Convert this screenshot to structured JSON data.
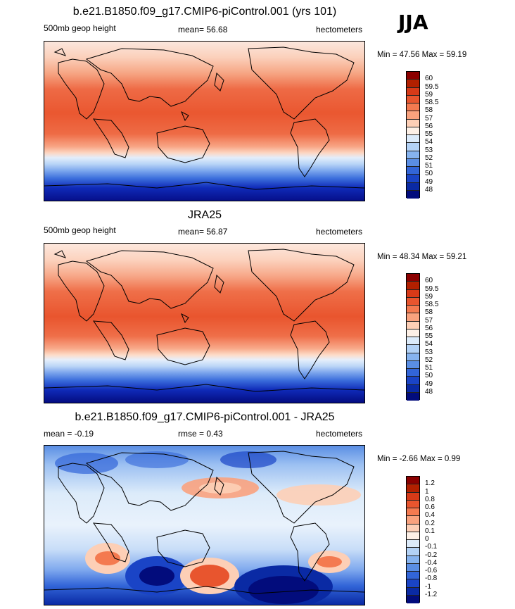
{
  "season": "JJA",
  "panels": [
    {
      "title": "b.e21.B1850.f09_g17.CMIP6-piControl.001 (yrs 101)",
      "left_label": "500mb geop height",
      "mean_label": "mean=  56.68",
      "units": "hectometers",
      "minmax": "Min =  47.56 Max =  59.19",
      "colorbar_labels": [
        "60",
        "59.5",
        "59",
        "58.5",
        "58",
        "57",
        "56",
        "55",
        "54",
        "53",
        "52",
        "51",
        "50",
        "49",
        "48"
      ],
      "colorbar_colors": [
        "#8b0000",
        "#b22000",
        "#d73a18",
        "#e8552e",
        "#f47a50",
        "#f9a27e",
        "#fdcfb6",
        "#fdf0e6",
        "#dcebfa",
        "#b3d2f6",
        "#86b3ef",
        "#5a8ee4",
        "#3265d8",
        "#1a44c6",
        "#0a2aa4",
        "#020c7c"
      ],
      "map_stops": [
        [
          "#fbe7dd",
          0
        ],
        [
          "#fbd0bb",
          10
        ],
        [
          "#f6a583",
          20
        ],
        [
          "#ee6a45",
          30
        ],
        [
          "#ea5730",
          45
        ],
        [
          "#ee6b45",
          58
        ],
        [
          "#f8a585",
          66
        ],
        [
          "#fcd6c2",
          70
        ],
        [
          "#e3eefb",
          73
        ],
        [
          "#b8d4f7",
          77
        ],
        [
          "#7fa9ee",
          81
        ],
        [
          "#3c6fdc",
          86
        ],
        [
          "#0f2ab8",
          92
        ],
        [
          "#060f8a",
          100
        ]
      ]
    },
    {
      "title": "JRA25",
      "left_label": "500mb geop height",
      "mean_label": "mean=  56.87",
      "units": "hectometers",
      "minmax": "Min =  48.34 Max =  59.21",
      "colorbar_labels": [
        "60",
        "59.5",
        "59",
        "58.5",
        "58",
        "57",
        "56",
        "55",
        "54",
        "53",
        "52",
        "51",
        "50",
        "49",
        "48"
      ],
      "colorbar_colors": [
        "#8b0000",
        "#b22000",
        "#d73a18",
        "#e8552e",
        "#f47a50",
        "#f9a27e",
        "#fdcfb6",
        "#fdf0e6",
        "#dcebfa",
        "#b3d2f6",
        "#86b3ef",
        "#5a8ee4",
        "#3265d8",
        "#1a44c6",
        "#0a2aa4",
        "#020c7c"
      ],
      "map_stops": [
        [
          "#fde8de",
          0
        ],
        [
          "#fcd3bf",
          10
        ],
        [
          "#f7a98a",
          20
        ],
        [
          "#ef6f49",
          30
        ],
        [
          "#e9552e",
          46
        ],
        [
          "#ef6e48",
          58
        ],
        [
          "#f8aa8b",
          66
        ],
        [
          "#fddcc9",
          70
        ],
        [
          "#e6effb",
          73
        ],
        [
          "#bcd6f7",
          77
        ],
        [
          "#7da6ed",
          81
        ],
        [
          "#3a6ddb",
          86
        ],
        [
          "#0f2ab8",
          92
        ],
        [
          "#040c80",
          100
        ]
      ]
    },
    {
      "title": "b.e21.B1850.f09_g17.CMIP6-piControl.001 - JRA25",
      "left_label": "mean =  -0.19",
      "mean_label": "rmse =   0.43",
      "units": "hectometers",
      "minmax": "Min =  -2.66 Max =   0.99",
      "colorbar_labels": [
        "1.2",
        "1",
        "0.8",
        "0.6",
        "0.4",
        "0.2",
        "0.1",
        "0",
        "-0.1",
        "-0.2",
        "-0.4",
        "-0.6",
        "-0.8",
        "-1",
        "-1.2"
      ],
      "colorbar_colors": [
        "#8b0000",
        "#b22000",
        "#d73a18",
        "#e8552e",
        "#f47a50",
        "#f9a27e",
        "#fdcfb6",
        "#fdf0e6",
        "#dcebfa",
        "#b3d2f6",
        "#86b3ef",
        "#5a8ee4",
        "#3265d8",
        "#1a44c6",
        "#0a2aa4",
        "#020c7c"
      ],
      "map_stops": [
        [
          "#5a8ee4",
          0
        ],
        [
          "#9cc0f2",
          12
        ],
        [
          "#dcebfa",
          30
        ],
        [
          "#e9f2fc",
          50
        ],
        [
          "#c9def8",
          65
        ],
        [
          "#7fa9ee",
          78
        ],
        [
          "#3265d8",
          88
        ],
        [
          "#0a2aa4",
          100
        ]
      ]
    }
  ]
}
